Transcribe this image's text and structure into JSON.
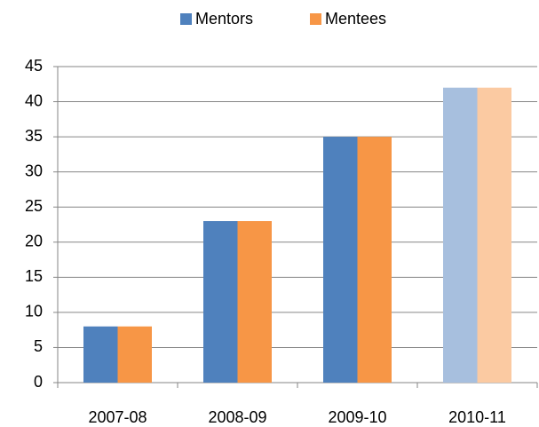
{
  "chart_data": {
    "type": "bar",
    "categories": [
      "2007-08",
      "2008-09",
      "2009-10",
      "2010-11"
    ],
    "series": [
      {
        "name": "Mentors",
        "color": "#4f81bd",
        "colors": [
          "#4f81bd",
          "#4f81bd",
          "#4f81bd",
          "#a7bfde"
        ],
        "values": [
          8,
          23,
          35,
          42
        ]
      },
      {
        "name": "Mentees",
        "color": "#f79646",
        "colors": [
          "#f79646",
          "#f79646",
          "#f79646",
          "#fbcaa2"
        ],
        "values": [
          8,
          23,
          35,
          42
        ]
      }
    ],
    "ylim": [
      0,
      45
    ],
    "yticks": [
      0,
      5,
      10,
      15,
      20,
      25,
      30,
      35,
      40,
      45
    ],
    "grid": true,
    "legend": "top"
  }
}
